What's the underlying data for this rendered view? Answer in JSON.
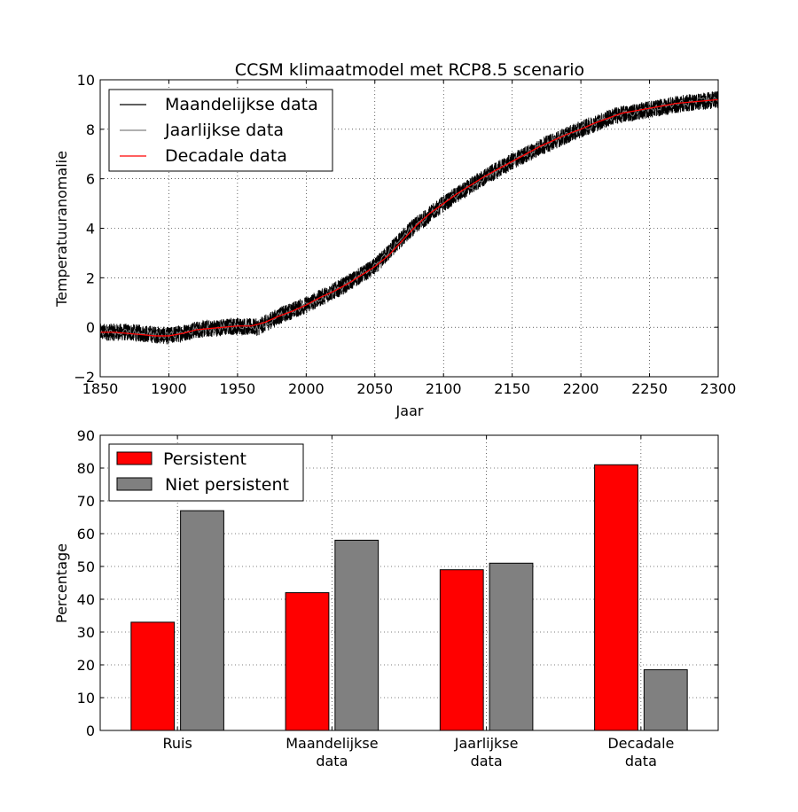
{
  "chart_data": [
    {
      "type": "line",
      "title": "CCSM klimaatmodel met RCP8.5 scenario",
      "xlabel": "Jaar",
      "ylabel": "Temperatuuranomalie",
      "xlim": [
        1850,
        2300
      ],
      "ylim": [
        -2,
        10
      ],
      "xticks": [
        1850,
        1900,
        1950,
        2000,
        2050,
        2100,
        2150,
        2200,
        2250,
        2300
      ],
      "yticks": [
        -2,
        0,
        2,
        4,
        6,
        8,
        10
      ],
      "grid": true,
      "legend_position": "top-left",
      "series": [
        {
          "name": "Maandelijkse data",
          "color": "#000000",
          "resolution": "monthly",
          "noise_amplitude": 0.35,
          "trend_x": [
            1850,
            1870,
            1890,
            1900,
            1920,
            1950,
            1965,
            1980,
            2000,
            2025,
            2050,
            2075,
            2100,
            2125,
            2150,
            2175,
            2200,
            2225,
            2250,
            2275,
            2300
          ],
          "trend_y": [
            -0.2,
            -0.2,
            -0.3,
            -0.35,
            -0.1,
            0.05,
            0.0,
            0.45,
            0.9,
            1.6,
            2.45,
            3.9,
            5.0,
            5.9,
            6.7,
            7.4,
            8.0,
            8.55,
            8.8,
            9.05,
            9.2
          ]
        },
        {
          "name": "Jaarlijkse data",
          "color": "#808080",
          "resolution": "yearly",
          "noise_amplitude": 0.15,
          "trend_x": [
            1850,
            1870,
            1890,
            1900,
            1920,
            1950,
            1965,
            1980,
            2000,
            2025,
            2050,
            2075,
            2100,
            2125,
            2150,
            2175,
            2200,
            2225,
            2250,
            2275,
            2300
          ],
          "trend_y": [
            -0.2,
            -0.2,
            -0.3,
            -0.35,
            -0.1,
            0.05,
            0.0,
            0.45,
            0.9,
            1.6,
            2.45,
            3.9,
            5.0,
            5.9,
            6.7,
            7.4,
            8.0,
            8.55,
            8.8,
            9.05,
            9.2
          ]
        },
        {
          "name": "Decadale data",
          "color": "#ff0000",
          "resolution": "decadal",
          "x": [
            1850,
            1860,
            1870,
            1880,
            1890,
            1900,
            1910,
            1920,
            1930,
            1940,
            1950,
            1960,
            1970,
            1980,
            1990,
            2000,
            2010,
            2020,
            2030,
            2040,
            2050,
            2060,
            2070,
            2080,
            2090,
            2100,
            2110,
            2120,
            2130,
            2140,
            2150,
            2160,
            2170,
            2180,
            2190,
            2200,
            2210,
            2220,
            2230,
            2240,
            2250,
            2260,
            2270,
            2280,
            2290,
            2300
          ],
          "y": [
            -0.2,
            -0.2,
            -0.25,
            -0.3,
            -0.35,
            -0.35,
            -0.25,
            -0.1,
            -0.05,
            0.0,
            0.05,
            0.05,
            0.2,
            0.45,
            0.65,
            0.9,
            1.2,
            1.45,
            1.75,
            2.1,
            2.45,
            2.9,
            3.5,
            4.1,
            4.6,
            5.0,
            5.4,
            5.75,
            6.1,
            6.4,
            6.7,
            7.0,
            7.3,
            7.55,
            7.8,
            8.0,
            8.25,
            8.45,
            8.65,
            8.75,
            8.85,
            8.95,
            9.05,
            9.1,
            9.15,
            9.2
          ]
        }
      ]
    },
    {
      "type": "bar",
      "title": "",
      "xlabel": "",
      "ylabel": "Percentage",
      "ylim": [
        0,
        90
      ],
      "yticks": [
        0,
        10,
        20,
        30,
        40,
        50,
        60,
        70,
        80,
        90
      ],
      "grid": true,
      "legend_position": "top-left",
      "categories": [
        [
          "Ruis"
        ],
        [
          "Maandelijkse",
          "data"
        ],
        [
          "Jaarlijkse",
          "data"
        ],
        [
          "Decadale",
          "data"
        ]
      ],
      "series": [
        {
          "name": "Persistent",
          "color": "#ff0000",
          "values": [
            33,
            42,
            49,
            81
          ]
        },
        {
          "name": "Niet persistent",
          "color": "#808080",
          "values": [
            67,
            58,
            51,
            18.5
          ]
        }
      ]
    }
  ]
}
